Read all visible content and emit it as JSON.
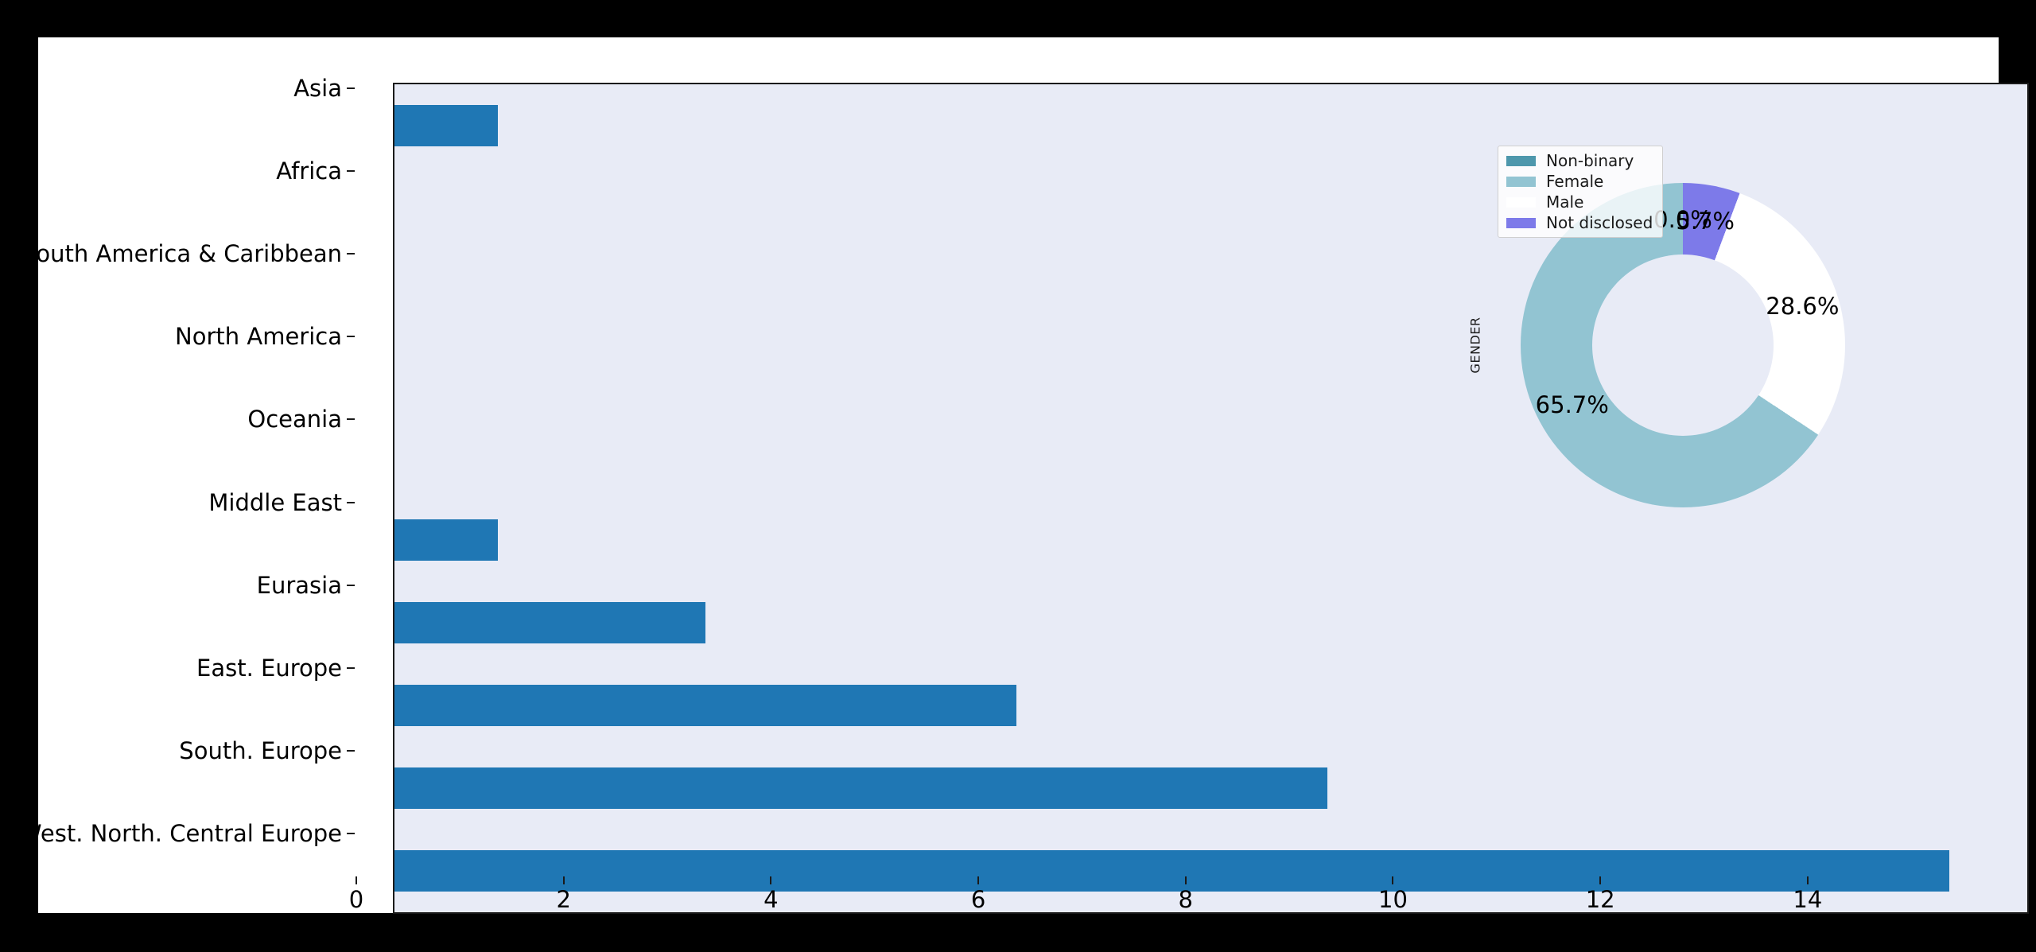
{
  "colors": {
    "page_bg": "#000000",
    "figure_bg": "#ffffff",
    "plot_bg": "#e8ebf6",
    "bar": "#1f77b4",
    "axis_line": "#1a1a1a",
    "legend_bg": "rgba(255,255,255,0.8)"
  },
  "chart_data": [
    {
      "type": "bar",
      "orientation": "horizontal",
      "title": "",
      "xlabel": "",
      "ylabel": "",
      "categories": [
        "Asia",
        "Africa",
        "South America & Caribbean",
        "North America",
        "Oceania",
        "Middle East",
        "Eurasia",
        "East. Europe",
        "South. Europe",
        "West. North. Central Europe"
      ],
      "values": [
        1,
        0,
        0,
        0,
        0,
        1,
        3,
        6,
        9,
        15
      ],
      "xticks": [
        "0",
        "2",
        "4",
        "6",
        "8",
        "10",
        "12",
        "14"
      ],
      "xtick_values": [
        0,
        2,
        4,
        6,
        8,
        10,
        12,
        14
      ],
      "xlim": [
        0,
        15.75
      ],
      "grid": false,
      "bar_color": "#1f77b4"
    },
    {
      "type": "pie",
      "subtype": "donut",
      "title": "GENDER",
      "legend_position": "upper-left",
      "start_angle": 90,
      "counterclockwise": true,
      "hole_ratio": 0.56,
      "pct_distance": 0.775,
      "slices": [
        {
          "label": "Non-binary",
          "value_pct": 0.0,
          "pct_text": "0.0%",
          "color": "#4d97ac"
        },
        {
          "label": "Female",
          "value_pct": 65.7,
          "pct_text": "65.7%",
          "color": "#92c4d2"
        },
        {
          "label": "Male",
          "value_pct": 28.6,
          "pct_text": "28.6%",
          "color": "#ffffff"
        },
        {
          "label": "Not disclosed",
          "value_pct": 5.7,
          "pct_text": "5.7%",
          "color": "#7d7ae9"
        }
      ]
    }
  ]
}
